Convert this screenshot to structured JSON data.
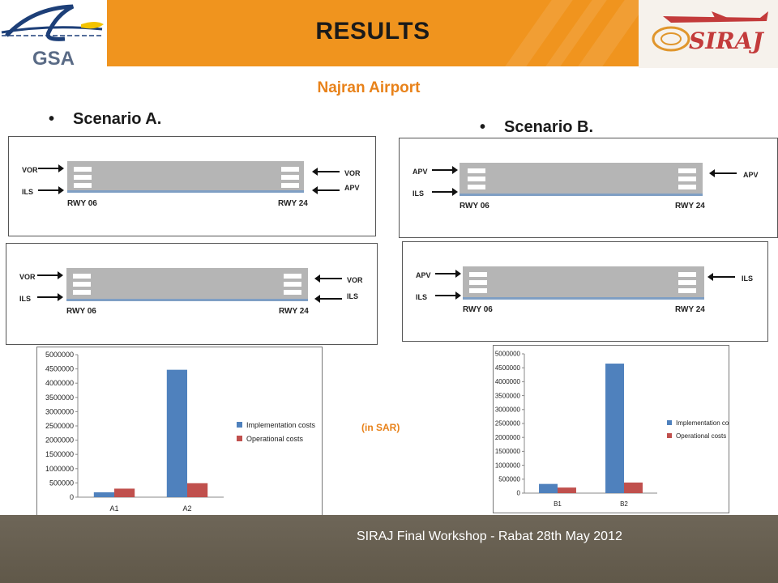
{
  "header": {
    "title": "RESULTS",
    "left_logo": {
      "text": "GSA",
      "icon": "gsa-logo-icon"
    },
    "right_logo": {
      "text": "SIRAJ",
      "icon": "siraj-airplane-logo-icon"
    }
  },
  "subtitle": "Najran Airport",
  "scenarios": [
    {
      "bullet": "•",
      "label": "Scenario A."
    },
    {
      "bullet": "•",
      "label": "Scenario B."
    }
  ],
  "diagrams": [
    {
      "left_top": "VOR",
      "left_bottom": "ILS",
      "right_top": "VOR",
      "right_bottom": "APV",
      "rwy_left": "RWY 06",
      "rwy_right": "RWY 24"
    },
    {
      "left_top": "VOR",
      "left_bottom": "ILS",
      "right_top": "VOR",
      "right_bottom": "ILS",
      "rwy_left": "RWY 06",
      "rwy_right": "RWY 24"
    },
    {
      "left_top": "APV",
      "left_bottom": "ILS",
      "right_top": "APV",
      "right_bottom": "",
      "rwy_left": "RWY 06",
      "rwy_right": "RWY 24"
    },
    {
      "left_top": "APV",
      "left_bottom": "ILS",
      "right_top": "ILS",
      "right_bottom": "",
      "rwy_left": "RWY 06",
      "rwy_right": "RWY 24"
    }
  ],
  "unit_note": "(in SAR)",
  "chart_data": [
    {
      "type": "bar",
      "categories": [
        "A1",
        "A2"
      ],
      "series": [
        {
          "name": "Implementation costs",
          "color": "#4f81bd",
          "values": [
            170000,
            4470000
          ]
        },
        {
          "name": "Operational costs",
          "color": "#c0504d",
          "values": [
            300000,
            490000
          ]
        }
      ],
      "ylim": [
        0,
        5000000
      ],
      "yticks": [
        "0",
        "500000",
        "1000000",
        "1500000",
        "2000000",
        "2500000",
        "3000000",
        "3500000",
        "4000000",
        "4500000",
        "5000000"
      ],
      "legend": "right",
      "grid": false
    },
    {
      "type": "bar",
      "categories": [
        "B1",
        "B2"
      ],
      "series": [
        {
          "name": "Implementation costs",
          "color": "#4f81bd",
          "values": [
            330000,
            4650000
          ]
        },
        {
          "name": "Operational costs",
          "color": "#c0504d",
          "values": [
            200000,
            380000
          ]
        }
      ],
      "ylim": [
        0,
        5000000
      ],
      "yticks": [
        "0",
        "500000",
        "1000000",
        "1500000",
        "2000000",
        "2500000",
        "3000000",
        "3500000",
        "4000000",
        "4500000",
        "5000000"
      ],
      "legend": "right",
      "grid": false
    }
  ],
  "footer": {
    "text": "SIRAJ  Final Workshop -  Rabat 28th May 2012"
  }
}
